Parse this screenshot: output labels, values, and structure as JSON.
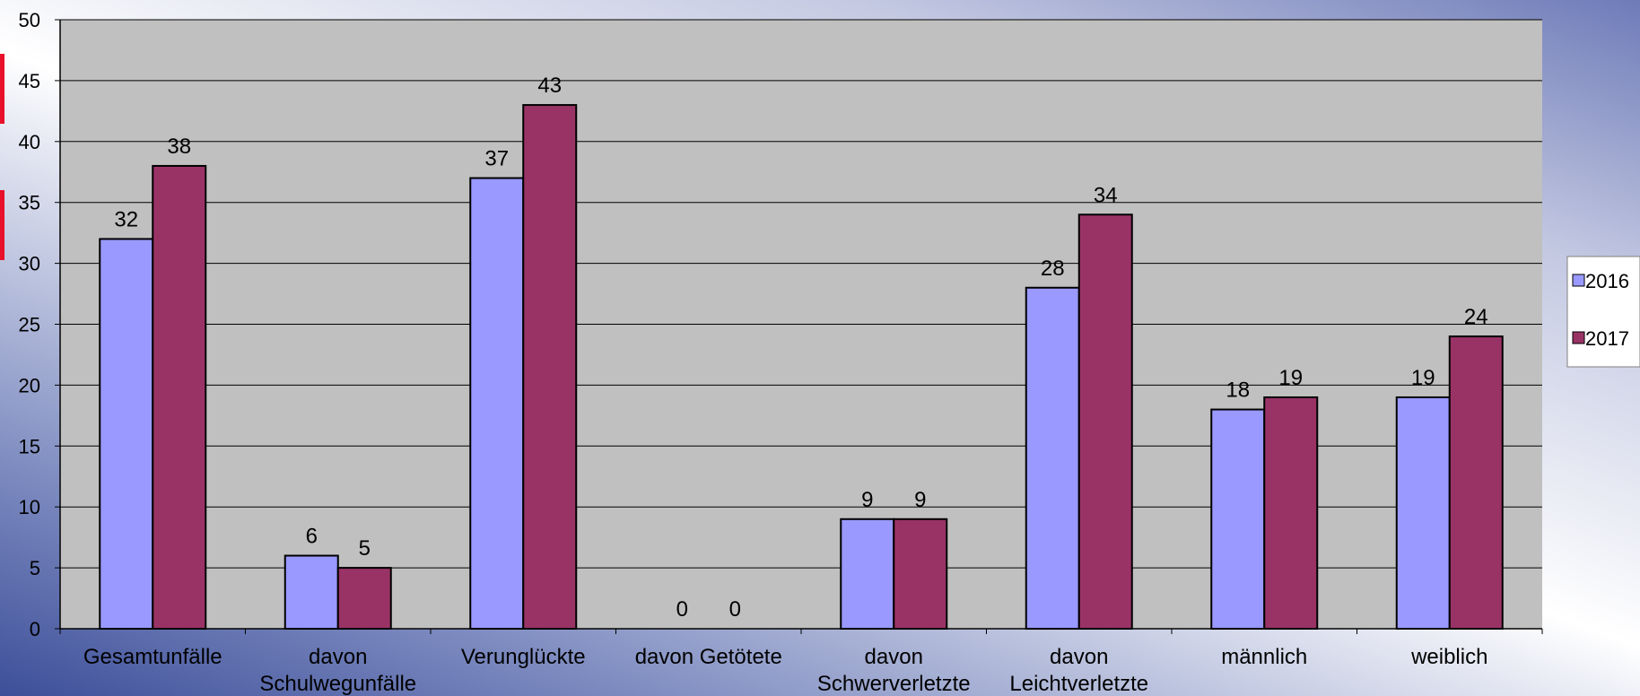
{
  "chart_data": {
    "type": "bar",
    "categories": [
      [
        "Gesamtunfälle"
      ],
      [
        "davon",
        "Schulwegunfälle"
      ],
      [
        "Verunglückte"
      ],
      [
        "davon Getötete"
      ],
      [
        "davon",
        "Schwerverletzte"
      ],
      [
        "davon",
        "Leichtverletzte"
      ],
      [
        "männlich"
      ],
      [
        "weiblich"
      ]
    ],
    "series": [
      {
        "name": "2016",
        "values": [
          32,
          6,
          37,
          0,
          9,
          28,
          18,
          19
        ],
        "color": "#9999ff"
      },
      {
        "name": "2017",
        "values": [
          38,
          5,
          43,
          0,
          9,
          34,
          19,
          24
        ],
        "color": "#993366"
      }
    ],
    "ylim": [
      0,
      50
    ],
    "yticks": [
      0,
      5,
      10,
      15,
      20,
      25,
      30,
      35,
      40,
      45,
      50
    ],
    "grid": true,
    "legend_position": "right",
    "plot_background": "#c0c0c0"
  }
}
